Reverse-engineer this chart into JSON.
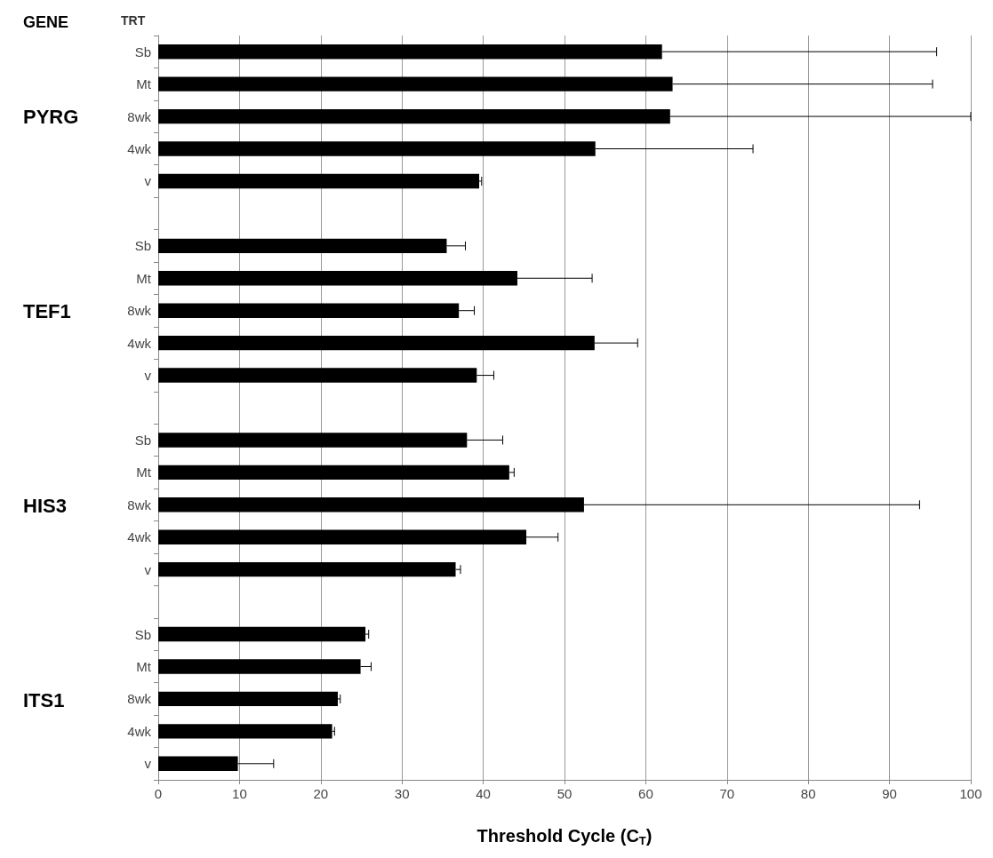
{
  "chart_data": {
    "type": "bar",
    "orientation": "horizontal",
    "xlabel": "Threshold Cycle (C$_{T}$)",
    "categories": [
      "Sb",
      "Mt",
      "8wk",
      "4wk",
      "v",
      null,
      "Sb",
      "Mt",
      "8wk",
      "4wk",
      "v",
      null,
      "Sb",
      "Mt",
      "8wk",
      "4wk",
      "v",
      null,
      "Sb",
      "Mt",
      "8wk",
      "4wk",
      "v"
    ],
    "values": [
      62,
      63.3,
      63,
      53.8,
      39.5,
      null,
      35.5,
      44.2,
      37,
      53.7,
      39.2,
      null,
      38,
      43.2,
      52.4,
      45.3,
      36.6,
      null,
      25.5,
      24.9,
      22.1,
      21.4,
      9.8
    ],
    "errors": [
      [
        62,
        95.8
      ],
      [
        63.3,
        95.3
      ],
      [
        63,
        100
      ],
      [
        53.8,
        73.2
      ],
      [
        39.5,
        39.8
      ],
      null,
      [
        35.5,
        37.8
      ],
      [
        44.2,
        53.4
      ],
      [
        37,
        38.9
      ],
      [
        53.7,
        59
      ],
      [
        39.2,
        41.3
      ],
      null,
      [
        38,
        42.4
      ],
      [
        43.2,
        43.8
      ],
      [
        52.4,
        93.7
      ],
      [
        45.3,
        49.2
      ],
      [
        36.6,
        37.2
      ],
      null,
      [
        25.5,
        25.9
      ],
      [
        24.9,
        26.2
      ],
      [
        22.1,
        22.4
      ],
      [
        21.4,
        21.7
      ],
      [
        9.8,
        14.2
      ]
    ],
    "color": "#000000",
    "xlim": [
      0,
      100
    ],
    "xticks": [
      0,
      10,
      20,
      30,
      40,
      50,
      60,
      70,
      80,
      90,
      100
    ],
    "grid": "x",
    "annotations": [
      "GENE",
      "TRT",
      "PYRG",
      "TEF1",
      "HIS3",
      "ITS1"
    ]
  }
}
